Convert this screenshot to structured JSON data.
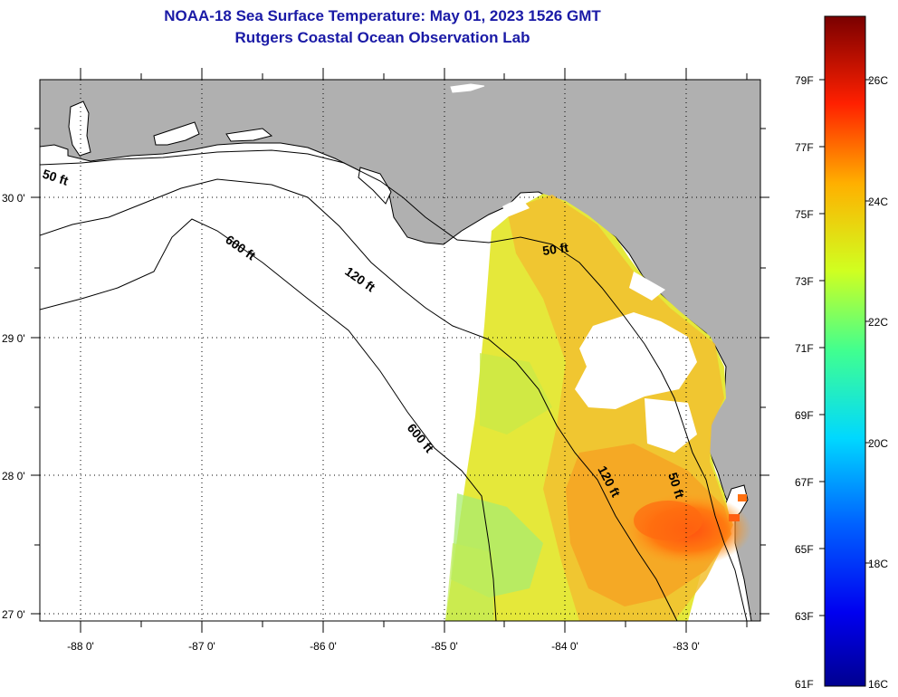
{
  "title": {
    "line1": "NOAA-18 Sea Surface Temperature:  May 01, 2023 1526 GMT",
    "line2": "Rutgers Coastal Ocean Observation Lab"
  },
  "map": {
    "lat_labels": [
      "30 0'",
      "29 0'",
      "28 0'",
      "27 0'"
    ],
    "lon_labels": [
      "-88 0'",
      "-87 0'",
      "-86 0'",
      "-85 0'",
      "-84 0'",
      "-83 0'"
    ],
    "contours": {
      "c50_west": "50 ft",
      "c50_east": "50 ft",
      "c50_south": "50 ft",
      "c120_north": "120 ft",
      "c120_south": "120 ft",
      "c600_north": "600 ft",
      "c600_south": "600 ft"
    },
    "colors": {
      "land": "#b0b0b0",
      "ocean": "#ffffff",
      "title": "#1a1aa6"
    }
  },
  "colorbar": {
    "fahrenheit": [
      "79F",
      "77F",
      "75F",
      "73F",
      "71F",
      "69F",
      "67F",
      "65F",
      "63F",
      "61F"
    ],
    "celsius": [
      "26C",
      "24C",
      "22C",
      "20C",
      "18C",
      "16C"
    ]
  }
}
